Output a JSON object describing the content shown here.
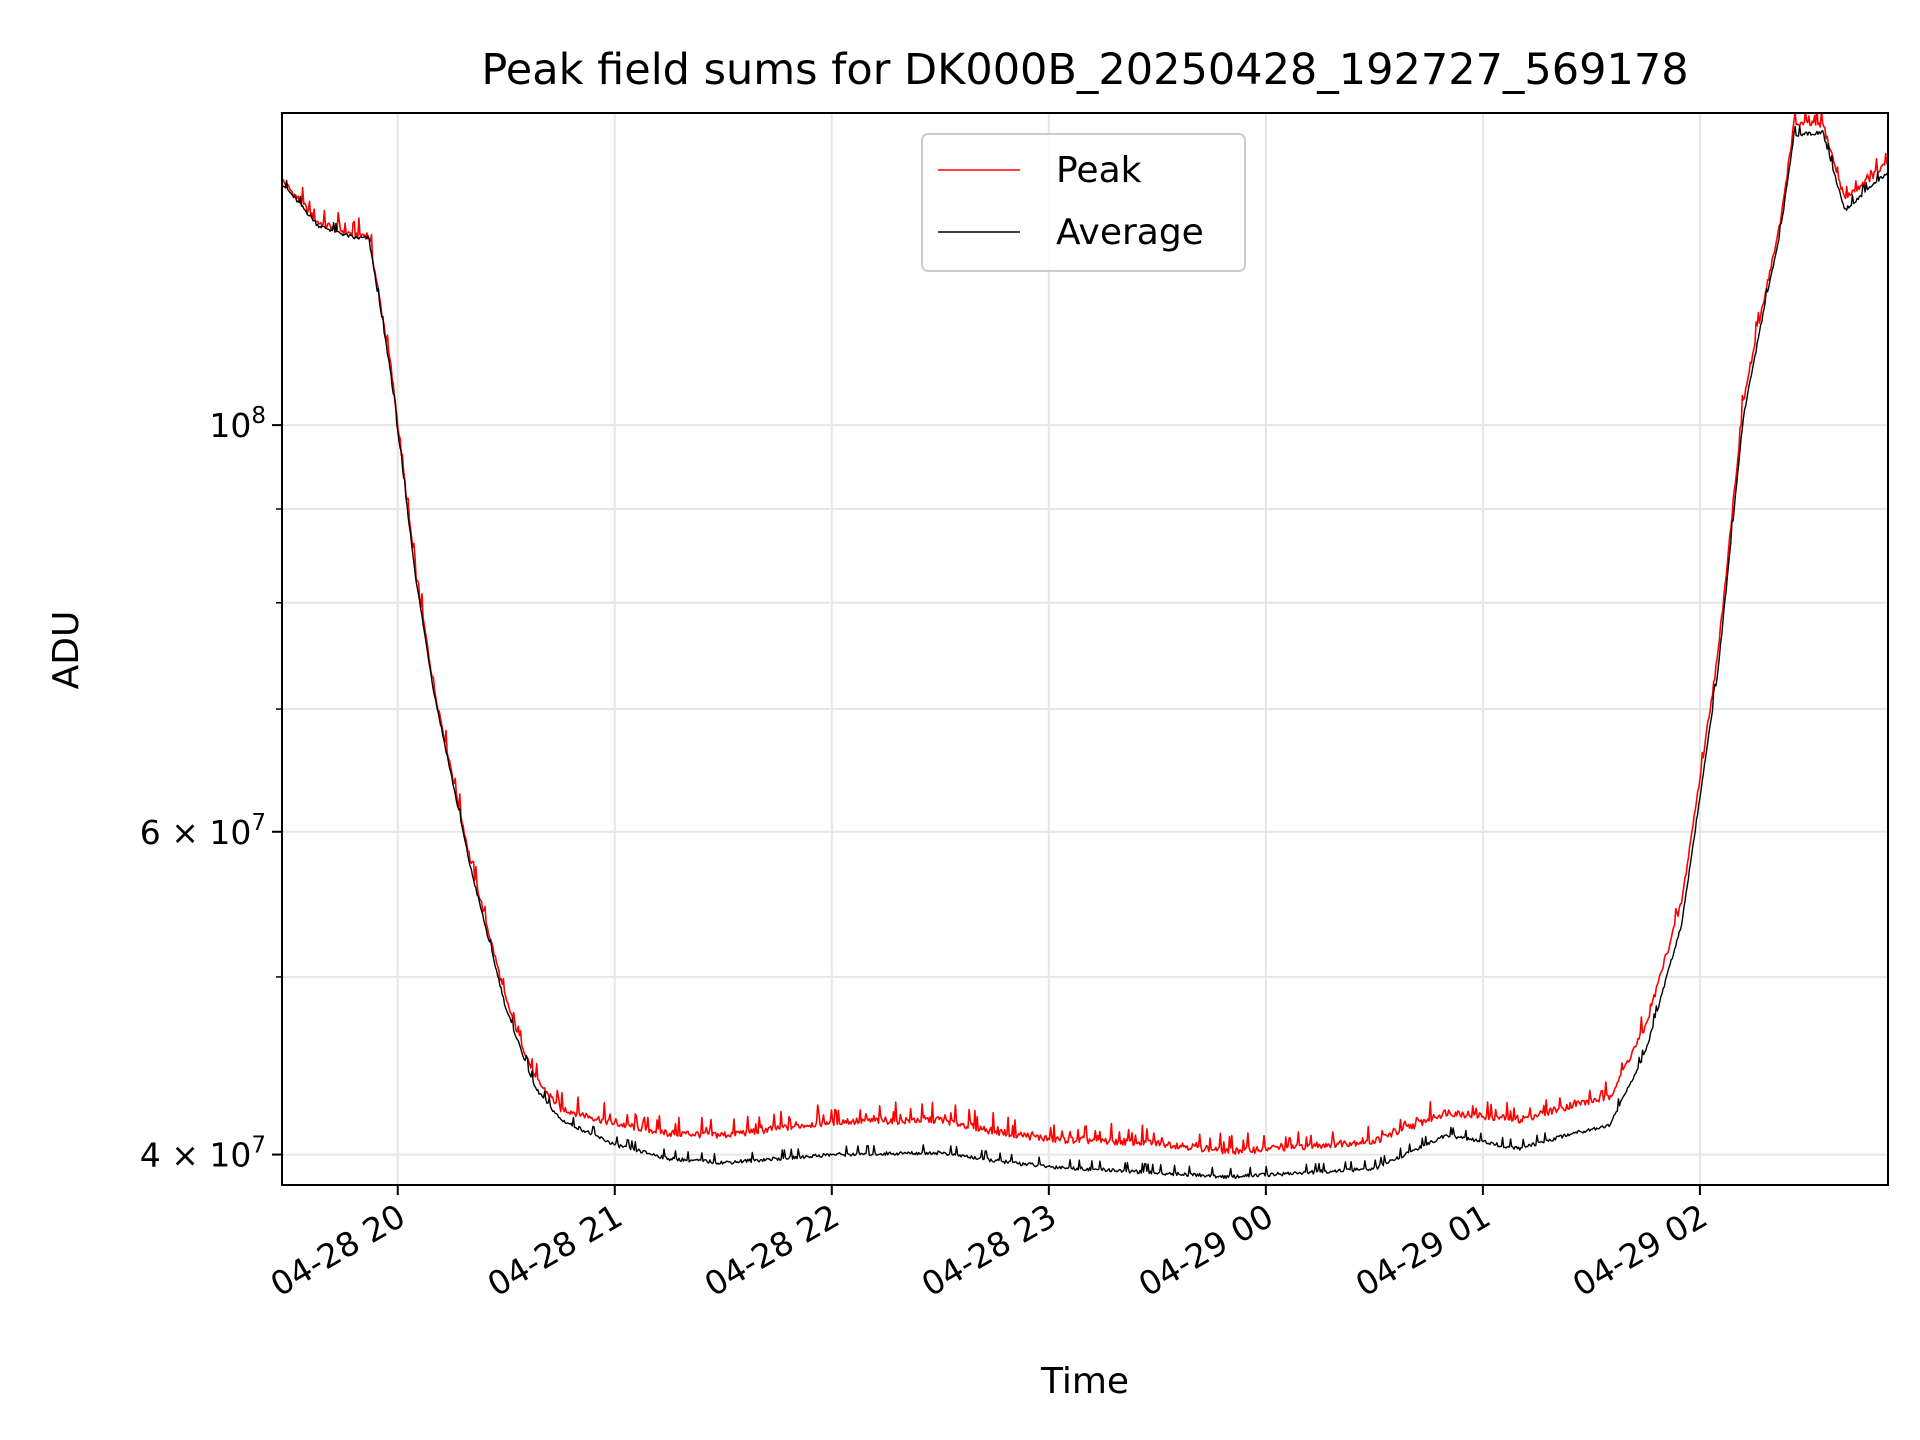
{
  "chart_data": {
    "type": "line",
    "title": "Peak field sums for DK000B_20250428_192727_569178",
    "xlabel": "Time",
    "ylabel": "ADU",
    "y_scale": "log",
    "grid": true,
    "legend_placement": "top-center",
    "x_range": [
      "2025-04-28 19:28",
      "2025-04-29 02:52"
    ],
    "y_range": [
      38500000,
      148000000
    ],
    "x_ticks": [
      {
        "value": "2025-04-28 20:00",
        "label": "04-28 20"
      },
      {
        "value": "2025-04-28 21:00",
        "label": "04-28 21"
      },
      {
        "value": "2025-04-28 22:00",
        "label": "04-28 22"
      },
      {
        "value": "2025-04-28 23:00",
        "label": "04-28 23"
      },
      {
        "value": "2025-04-29 00:00",
        "label": "04-29 00"
      },
      {
        "value": "2025-04-29 01:00",
        "label": "04-29 01"
      },
      {
        "value": "2025-04-29 02:00",
        "label": "04-29 02"
      }
    ],
    "y_ticks": [
      {
        "value": 40000000,
        "base": "4 × 10",
        "exp": "7"
      },
      {
        "value": 60000000,
        "base": "6 × 10",
        "exp": "7"
      },
      {
        "value": 100000000,
        "base": "10",
        "exp": "8"
      }
    ],
    "y_minor_ticks": [
      50000000,
      70000000,
      80000000,
      90000000
    ],
    "series": [
      {
        "name": "Peak",
        "color": "#ff0000",
        "x": [
          "2025-04-28 19:28",
          "2025-04-28 19:38",
          "2025-04-28 19:48",
          "2025-04-28 19:52",
          "2025-04-28 19:58",
          "2025-04-28 20:05",
          "2025-04-28 20:10",
          "2025-04-28 20:20",
          "2025-04-28 20:30",
          "2025-04-28 20:38",
          "2025-04-28 20:45",
          "2025-04-28 21:00",
          "2025-04-28 21:15",
          "2025-04-28 21:30",
          "2025-04-28 22:00",
          "2025-04-28 22:30",
          "2025-04-28 22:45",
          "2025-04-28 23:00",
          "2025-04-28 23:30",
          "2025-04-28 23:50",
          "2025-04-29 00:00",
          "2025-04-29 00:30",
          "2025-04-29 00:50",
          "2025-04-29 01:10",
          "2025-04-29 01:25",
          "2025-04-29 01:35",
          "2025-04-29 01:45",
          "2025-04-29 01:55",
          "2025-04-29 02:05",
          "2025-04-29 02:12",
          "2025-04-29 02:18",
          "2025-04-29 02:22",
          "2025-04-29 02:26",
          "2025-04-29 02:34",
          "2025-04-29 02:40",
          "2025-04-29 02:52"
        ],
        "y": [
          136000000,
          129000000,
          127000000,
          127000000,
          108000000,
          83000000,
          72000000,
          58000000,
          48500000,
          44000000,
          42400000,
          41600000,
          41100000,
          41000000,
          41700000,
          41800000,
          41200000,
          40800000,
          40600000,
          40200000,
          40300000,
          40700000,
          42200000,
          41800000,
          42600000,
          43000000,
          47000000,
          55000000,
          75000000,
          103000000,
          118000000,
          128000000,
          146000000,
          146000000,
          133000000,
          139000000
        ]
      },
      {
        "name": "Average",
        "color": "#000000",
        "x": [
          "2025-04-28 19:28",
          "2025-04-28 19:38",
          "2025-04-28 19:48",
          "2025-04-28 19:52",
          "2025-04-28 19:58",
          "2025-04-28 20:05",
          "2025-04-28 20:10",
          "2025-04-28 20:20",
          "2025-04-28 20:30",
          "2025-04-28 20:38",
          "2025-04-28 20:45",
          "2025-04-28 21:00",
          "2025-04-28 21:15",
          "2025-04-28 21:30",
          "2025-04-28 22:00",
          "2025-04-28 22:30",
          "2025-04-28 22:45",
          "2025-04-28 23:00",
          "2025-04-28 23:30",
          "2025-04-28 23:50",
          "2025-04-29 00:00",
          "2025-04-29 00:30",
          "2025-04-29 00:50",
          "2025-04-29 01:10",
          "2025-04-29 01:25",
          "2025-04-29 01:35",
          "2025-04-29 01:45",
          "2025-04-29 01:55",
          "2025-04-29 02:05",
          "2025-04-29 02:12",
          "2025-04-29 02:18",
          "2025-04-29 02:22",
          "2025-04-29 02:26",
          "2025-04-29 02:34",
          "2025-04-29 02:40",
          "2025-04-29 02:52"
        ],
        "y": [
          135500000,
          128500000,
          126500000,
          126500000,
          107000000,
          82500000,
          71500000,
          57500000,
          48000000,
          43500000,
          41800000,
          40500000,
          39800000,
          39600000,
          40000000,
          40100000,
          39700000,
          39400000,
          39100000,
          38900000,
          39000000,
          39300000,
          41000000,
          40300000,
          41100000,
          41500000,
          45500000,
          53500000,
          73500000,
          101000000,
          116500000,
          126500000,
          144000000,
          144500000,
          131000000,
          137500000
        ]
      }
    ]
  }
}
